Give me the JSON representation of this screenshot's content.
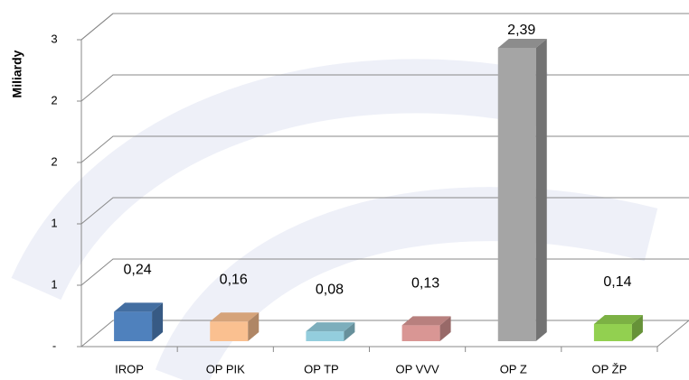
{
  "chart_data": {
    "type": "bar3d",
    "y_axis_label": "Miliardy",
    "categories": [
      "IROP",
      "OP PIK",
      "OP TP",
      "OP VVV",
      "OP Z",
      "OP ŽP"
    ],
    "values": [
      0.24,
      0.16,
      0.08,
      0.13,
      2.39,
      0.14
    ],
    "value_labels": [
      "0,24",
      "0,16",
      "0,08",
      "0,13",
      "2,39",
      "0,14"
    ],
    "colors": [
      "#4f81bd",
      "#fac090",
      "#93cddd",
      "#d99694",
      "#a5a5a5",
      "#92d050"
    ],
    "ylim": [
      0,
      2.5
    ],
    "yticks": [
      {
        "value": 0,
        "label": "-"
      },
      {
        "value": 0.5,
        "label": "1"
      },
      {
        "value": 1,
        "label": "1"
      },
      {
        "value": 1.5,
        "label": "2"
      },
      {
        "value": 2,
        "label": "2"
      },
      {
        "value": 2.5,
        "label": "3"
      }
    ],
    "grid": true
  }
}
